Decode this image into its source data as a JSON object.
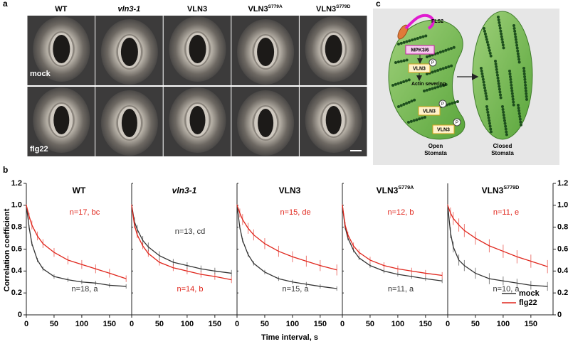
{
  "letters": {
    "a": "a",
    "b": "b",
    "c": "c"
  },
  "panel_a": {
    "columns": [
      {
        "text": "WT"
      },
      {
        "text": "vln3-1",
        "italic": true
      },
      {
        "text": "VLN3"
      },
      {
        "text": "VLN3",
        "sup": "S779A"
      },
      {
        "text": "VLN3",
        "sup": "S779D"
      }
    ],
    "rows": [
      "mock",
      "flg22"
    ]
  },
  "panel_c": {
    "receptor": "FLS2",
    "kinase": "MPK3/6",
    "protein": "VLN3",
    "phospho": "P",
    "process": "Actin severing",
    "open_label": [
      "Open",
      "Stomata"
    ],
    "closed_label": [
      "Closed",
      "Stomata"
    ]
  },
  "chart_data": [
    {
      "type": "line",
      "title": {
        "text": "WT"
      },
      "y_label": "Correlation coefficient",
      "x": [
        0,
        5,
        10,
        20,
        30,
        50,
        75,
        100,
        125,
        150,
        180
      ],
      "series": [
        {
          "name": "mock",
          "color": "#333333",
          "annotation": "n=18, a",
          "values": [
            1.0,
            0.8,
            0.65,
            0.5,
            0.42,
            0.35,
            0.32,
            0.3,
            0.29,
            0.27,
            0.26
          ],
          "errors": [
            0.01,
            0.02,
            0.02,
            0.02,
            0.02,
            0.02,
            0.02,
            0.02,
            0.02,
            0.02,
            0.02
          ]
        },
        {
          "name": "flg22",
          "color": "#e0251b",
          "annotation": "n=17, bc",
          "values": [
            1.0,
            0.9,
            0.82,
            0.72,
            0.65,
            0.57,
            0.5,
            0.46,
            0.42,
            0.38,
            0.33
          ],
          "errors": [
            0.01,
            0.03,
            0.04,
            0.04,
            0.04,
            0.04,
            0.04,
            0.04,
            0.04,
            0.04,
            0.03
          ]
        }
      ],
      "xlim": [
        0,
        190
      ],
      "xticks": [
        0,
        50,
        100,
        150
      ],
      "ylim": [
        0,
        1.2
      ],
      "yticks": [
        0,
        0.2,
        0.4,
        0.6,
        0.8,
        {
          "value": 1,
          "label": "1.0"
        },
        1.2
      ]
    },
    {
      "type": "line",
      "title": {
        "text": "vln3-1",
        "italic": true
      },
      "x": [
        0,
        5,
        10,
        20,
        30,
        50,
        75,
        100,
        125,
        150,
        180
      ],
      "series": [
        {
          "name": "mock",
          "color": "#333333",
          "annotation": "n=13, cd",
          "values": [
            1.0,
            0.85,
            0.78,
            0.68,
            0.62,
            0.54,
            0.48,
            0.45,
            0.42,
            0.4,
            0.38
          ],
          "errors": [
            0.01,
            0.04,
            0.04,
            0.04,
            0.04,
            0.04,
            0.03,
            0.03,
            0.03,
            0.03,
            0.03
          ]
        },
        {
          "name": "flg22",
          "color": "#e0251b",
          "annotation": "n=14, b",
          "values": [
            1.0,
            0.82,
            0.73,
            0.63,
            0.56,
            0.48,
            0.43,
            0.4,
            0.37,
            0.35,
            0.32
          ],
          "errors": [
            0.01,
            0.03,
            0.03,
            0.03,
            0.03,
            0.03,
            0.03,
            0.03,
            0.03,
            0.03,
            0.03
          ]
        }
      ],
      "xlim": [
        0,
        190
      ],
      "xticks": [
        0,
        50,
        100,
        150
      ],
      "ylim": [
        0,
        1.2
      ],
      "yticks": [
        0,
        0.2,
        0.4,
        0.6,
        0.8,
        {
          "value": 1,
          "label": "1.0"
        },
        1.2
      ]
    },
    {
      "type": "line",
      "title": {
        "text": "VLN3"
      },
      "x_label": "Time interval, s",
      "x": [
        0,
        5,
        10,
        20,
        30,
        50,
        75,
        100,
        125,
        150,
        180
      ],
      "series": [
        {
          "name": "mock",
          "color": "#333333",
          "annotation": "n=15, a",
          "values": [
            1.0,
            0.8,
            0.68,
            0.55,
            0.47,
            0.39,
            0.33,
            0.3,
            0.28,
            0.26,
            0.24
          ],
          "errors": [
            0.01,
            0.02,
            0.02,
            0.02,
            0.02,
            0.02,
            0.02,
            0.02,
            0.02,
            0.02,
            0.02
          ]
        },
        {
          "name": "flg22",
          "color": "#e0251b",
          "annotation": "n=15, de",
          "values": [
            1.0,
            0.93,
            0.87,
            0.79,
            0.73,
            0.65,
            0.58,
            0.53,
            0.49,
            0.45,
            0.41
          ],
          "errors": [
            0.01,
            0.04,
            0.05,
            0.05,
            0.05,
            0.05,
            0.05,
            0.05,
            0.05,
            0.05,
            0.05
          ]
        }
      ],
      "xlim": [
        0,
        190
      ],
      "xticks": [
        0,
        50,
        100,
        150
      ],
      "ylim": [
        0,
        1.2
      ],
      "yticks": [
        0,
        0.2,
        0.4,
        0.6,
        0.8,
        {
          "value": 1,
          "label": "1.0"
        },
        1.2
      ]
    },
    {
      "type": "line",
      "title": {
        "text": "VLN3",
        "sup": "S779A"
      },
      "x": [
        0,
        5,
        10,
        20,
        30,
        50,
        75,
        100,
        125,
        150,
        180
      ],
      "series": [
        {
          "name": "mock",
          "color": "#333333",
          "annotation": "n=11, a",
          "values": [
            1.0,
            0.8,
            0.7,
            0.59,
            0.52,
            0.45,
            0.4,
            0.37,
            0.35,
            0.33,
            0.31
          ],
          "errors": [
            0.01,
            0.02,
            0.02,
            0.02,
            0.02,
            0.02,
            0.02,
            0.02,
            0.02,
            0.02,
            0.02
          ]
        },
        {
          "name": "flg22",
          "color": "#e0251b",
          "annotation": "n=12, b",
          "values": [
            1.0,
            0.82,
            0.73,
            0.63,
            0.57,
            0.5,
            0.45,
            0.42,
            0.4,
            0.38,
            0.36
          ],
          "errors": [
            0.01,
            0.03,
            0.03,
            0.03,
            0.03,
            0.03,
            0.03,
            0.03,
            0.03,
            0.03,
            0.03
          ]
        }
      ],
      "xlim": [
        0,
        190
      ],
      "xticks": [
        0,
        50,
        100,
        150
      ],
      "ylim": [
        0,
        1.2
      ],
      "yticks": [
        0,
        0.2,
        0.4,
        0.6,
        0.8,
        {
          "value": 1,
          "label": "1.0"
        },
        1.2
      ]
    },
    {
      "type": "line",
      "title": {
        "text": "VLN3",
        "sup": "S779D"
      },
      "legend": "lower right",
      "x": [
        0,
        5,
        10,
        20,
        30,
        50,
        75,
        100,
        125,
        150,
        180
      ],
      "series": [
        {
          "name": "mock",
          "color": "#333333",
          "annotation": "n=10, a",
          "values": [
            1.0,
            0.75,
            0.62,
            0.5,
            0.45,
            0.38,
            0.33,
            0.31,
            0.29,
            0.27,
            0.26
          ],
          "errors": [
            0.01,
            0.05,
            0.05,
            0.05,
            0.05,
            0.05,
            0.05,
            0.04,
            0.04,
            0.04,
            0.04
          ]
        },
        {
          "name": "flg22",
          "color": "#e0251b",
          "annotation": "n=11, e",
          "values": [
            1.0,
            0.93,
            0.88,
            0.82,
            0.77,
            0.7,
            0.63,
            0.58,
            0.53,
            0.49,
            0.44
          ],
          "errors": [
            0.01,
            0.05,
            0.06,
            0.06,
            0.06,
            0.06,
            0.06,
            0.06,
            0.06,
            0.06,
            0.06
          ]
        }
      ],
      "xlim": [
        0,
        190
      ],
      "xticks": [
        0,
        50,
        100,
        150
      ],
      "ylim": [
        0,
        1.2
      ],
      "yticks": [
        0,
        0.2,
        0.4,
        0.6,
        0.8,
        {
          "value": 1,
          "label": "1.0"
        },
        1.2
      ]
    }
  ]
}
